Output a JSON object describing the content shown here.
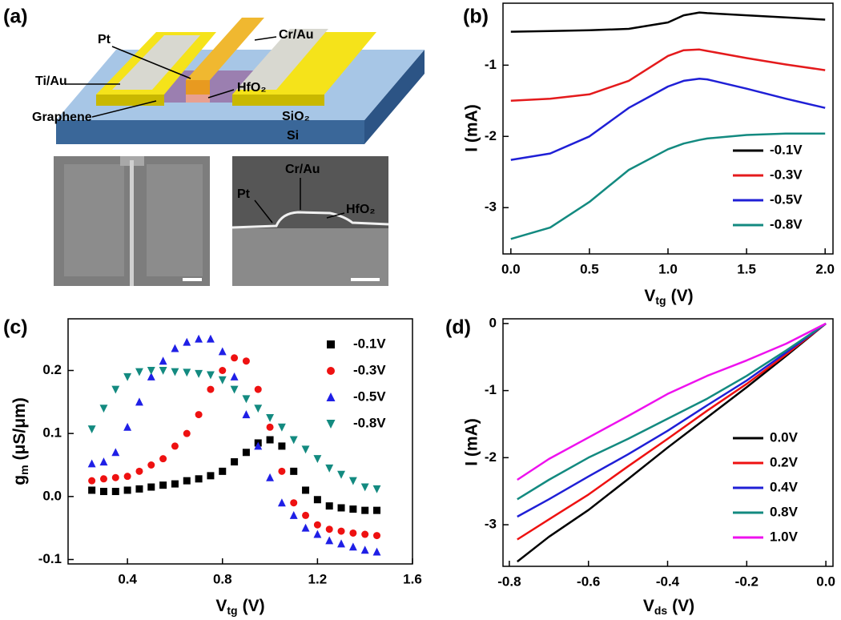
{
  "device_panel": {
    "panel_label": "(a)",
    "labels": {
      "pt": "Pt",
      "cr_au": "Cr/Au",
      "ti_au": "Ti/Au",
      "hfo2": "HfO₂",
      "graphene": "Graphene",
      "sio2": "SiO₂",
      "si": "Si"
    },
    "sem_labels": {
      "cr_au": "Cr/Au",
      "pt": "Pt",
      "hfo2": "HfO₂"
    }
  },
  "chart_data": [
    {
      "type": "line",
      "panel_label": "(b)",
      "x_label": {
        "text": "V",
        "sub": "tg",
        "unit": "(V)"
      },
      "y_label": "I (mA)",
      "x": [
        0,
        0.25,
        0.5,
        0.75,
        1.0,
        1.1,
        1.2,
        1.25,
        1.5,
        1.75,
        2.0
      ],
      "xlim": [
        -0.05,
        2.05
      ],
      "ylim": [
        -3.65,
        -0.13
      ],
      "xticks": [
        {
          "value": 0,
          "label": "0.0"
        },
        0.5,
        {
          "value": 1,
          "label": "1.0"
        },
        1.5,
        {
          "value": 2,
          "label": "2.0"
        }
      ],
      "yticks": [
        -3,
        -2,
        -1
      ],
      "legend": "lower right",
      "series": [
        {
          "name": "-0.1V",
          "color": "#000000",
          "values": [
            -0.53,
            -0.52,
            -0.51,
            -0.49,
            -0.4,
            -0.3,
            -0.26,
            -0.27,
            -0.3,
            -0.33,
            -0.36
          ]
        },
        {
          "name": "-0.3V",
          "color": "#e41a1c",
          "values": [
            -1.5,
            -1.47,
            -1.41,
            -1.22,
            -0.87,
            -0.79,
            -0.78,
            -0.8,
            -0.9,
            -0.99,
            -1.07
          ]
        },
        {
          "name": "-0.5V",
          "color": "#1f1fd6",
          "values": [
            -2.33,
            -2.24,
            -2.0,
            -1.6,
            -1.3,
            -1.22,
            -1.19,
            -1.2,
            -1.33,
            -1.47,
            -1.6
          ]
        },
        {
          "name": "-0.8V",
          "color": "#138a80",
          "values": [
            -3.44,
            -3.28,
            -2.92,
            -2.47,
            -2.18,
            -2.1,
            -2.05,
            -2.03,
            -1.98,
            -1.96,
            -1.96
          ]
        }
      ]
    },
    {
      "type": "scatter",
      "panel_label": "(c)",
      "x_label": {
        "text": "V",
        "sub": "tg",
        "unit": "(V)"
      },
      "y_label": {
        "text": "g",
        "sub": "m",
        "unit": "(μS/μm)"
      },
      "x": [
        0.25,
        0.3,
        0.35,
        0.4,
        0.45,
        0.5,
        0.55,
        0.6,
        0.65,
        0.7,
        0.75,
        0.8,
        0.85,
        0.9,
        0.95,
        1.0,
        1.05,
        1.1,
        1.15,
        1.2,
        1.25,
        1.3,
        1.35,
        1.4,
        1.45
      ],
      "xlim": [
        0.15,
        1.6
      ],
      "ylim": [
        -0.107,
        0.282
      ],
      "xticks": [
        0.4,
        0.8,
        1.2,
        1.6
      ],
      "yticks": [
        -0.1,
        {
          "value": 0,
          "label": "0.0"
        },
        0.1,
        0.2
      ],
      "legend": "upper right",
      "series": [
        {
          "name": "-0.1V",
          "color": "#000000",
          "marker": "square",
          "values": [
            0.01,
            0.008,
            0.008,
            0.01,
            0.012,
            0.015,
            0.018,
            0.02,
            0.025,
            0.028,
            0.033,
            0.04,
            0.055,
            0.07,
            0.085,
            0.09,
            0.08,
            0.04,
            0.01,
            -0.005,
            -0.015,
            -0.018,
            -0.02,
            -0.022,
            -0.022
          ]
        },
        {
          "name": "-0.3V",
          "color": "#ee1111",
          "marker": "circle",
          "values": [
            0.025,
            0.028,
            0.03,
            0.032,
            0.04,
            0.05,
            0.06,
            0.08,
            0.1,
            0.13,
            0.17,
            0.2,
            0.22,
            0.215,
            0.17,
            0.11,
            0.04,
            -0.01,
            -0.03,
            -0.045,
            -0.052,
            -0.055,
            -0.058,
            -0.06,
            -0.062
          ]
        },
        {
          "name": "-0.5V",
          "color": "#1f1fe6",
          "marker": "triangle-up",
          "values": [
            0.052,
            0.055,
            0.07,
            0.11,
            0.15,
            0.19,
            0.215,
            0.235,
            0.245,
            0.25,
            0.25,
            0.23,
            0.19,
            0.13,
            0.08,
            0.03,
            -0.01,
            -0.03,
            -0.05,
            -0.06,
            -0.07,
            -0.075,
            -0.08,
            -0.085,
            -0.088
          ]
        },
        {
          "name": "-0.8V",
          "color": "#138a80",
          "marker": "triangle-down",
          "values": [
            0.107,
            0.14,
            0.17,
            0.19,
            0.198,
            0.2,
            0.2,
            0.198,
            0.197,
            0.195,
            0.193,
            0.185,
            0.17,
            0.155,
            0.14,
            0.125,
            0.11,
            0.09,
            0.075,
            0.06,
            0.045,
            0.035,
            0.025,
            0.015,
            0.012
          ]
        }
      ]
    },
    {
      "type": "line",
      "panel_label": "(d)",
      "x_label": {
        "text": "V",
        "sub": "ds",
        "unit": "(V)"
      },
      "y_label": "I (mA)",
      "x": [
        -0.78,
        -0.7,
        -0.6,
        -0.5,
        -0.4,
        -0.3,
        -0.2,
        -0.1,
        0
      ],
      "xlim": [
        -0.816,
        0.018
      ],
      "ylim": [
        -3.62,
        0.07
      ],
      "xticks": [
        -0.8,
        -0.6,
        -0.4,
        -0.2,
        {
          "value": 0,
          "label": "0.0"
        }
      ],
      "yticks": [
        -3,
        -2,
        -1,
        0
      ],
      "legend": "lower right",
      "series": [
        {
          "name": "0.0V",
          "color": "#000000",
          "values": [
            -3.55,
            -3.18,
            -2.78,
            -2.32,
            -1.85,
            -1.4,
            -0.95,
            -0.48,
            0
          ]
        },
        {
          "name": "0.2V",
          "color": "#ee1111",
          "values": [
            -3.22,
            -2.92,
            -2.55,
            -2.13,
            -1.72,
            -1.3,
            -0.9,
            -0.46,
            0
          ]
        },
        {
          "name": "0.4V",
          "color": "#1f1fd6",
          "values": [
            -2.88,
            -2.62,
            -2.28,
            -1.95,
            -1.6,
            -1.22,
            -0.85,
            -0.43,
            0
          ]
        },
        {
          "name": "0.8V",
          "color": "#138a80",
          "values": [
            -2.62,
            -2.33,
            -2.0,
            -1.72,
            -1.42,
            -1.12,
            -0.78,
            -0.4,
            0
          ]
        },
        {
          "name": "1.0V",
          "color": "#ee11ee",
          "values": [
            -2.33,
            -2.02,
            -1.7,
            -1.38,
            -1.05,
            -0.78,
            -0.55,
            -0.3,
            0
          ]
        }
      ]
    }
  ]
}
